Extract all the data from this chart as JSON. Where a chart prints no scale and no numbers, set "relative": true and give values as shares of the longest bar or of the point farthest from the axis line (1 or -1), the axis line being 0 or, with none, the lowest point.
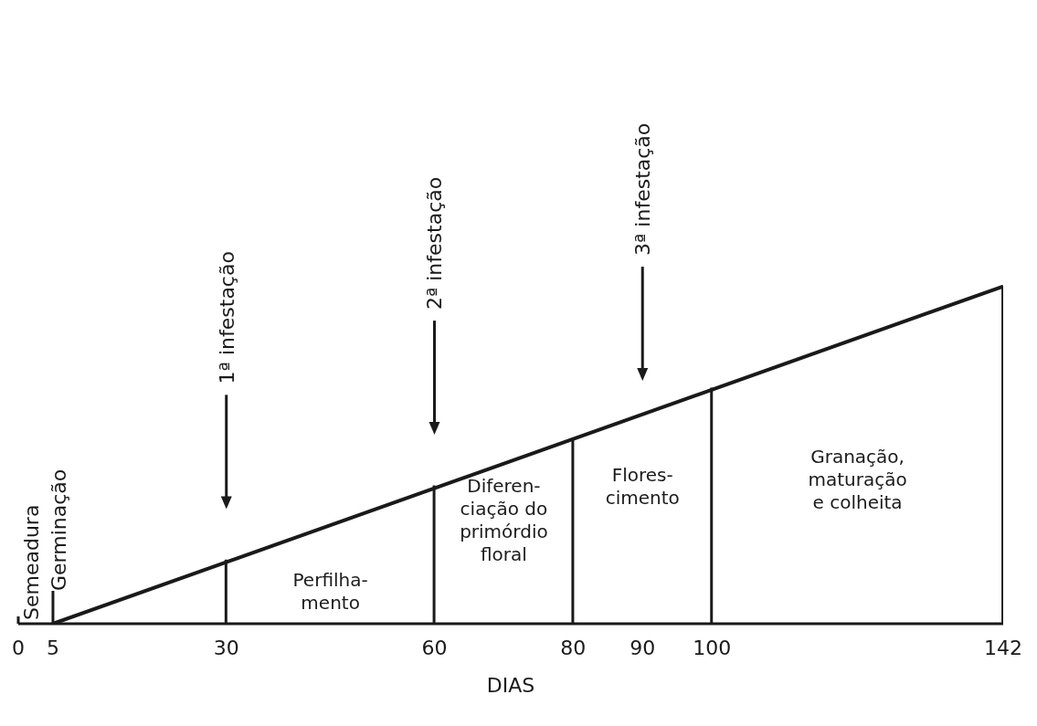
{
  "chart_data": {
    "type": "line",
    "xlabel": "DIAS",
    "relative": true,
    "xlim": [
      0,
      142
    ],
    "xticks": [
      0,
      5,
      30,
      60,
      80,
      90,
      100,
      142
    ],
    "marker": "none",
    "series": [
      {
        "color": "#1a1a1a",
        "x": [
          5,
          142
        ],
        "values": [
          0,
          1
        ]
      },
      {
        "type": "bar",
        "color": "#1a1a1a",
        "x": [
          30,
          60,
          80,
          100,
          142
        ],
        "values": [
          0.19,
          0.41,
          0.55,
          0.7,
          1
        ]
      }
    ],
    "ref_lines": [
      {
        "axis": "x",
        "value": 5,
        "label": "Germinação"
      },
      {
        "axis": "x",
        "value": 30,
        "label": "1ª infestação"
      },
      {
        "axis": "x",
        "value": 60,
        "label": "2ª infestação"
      },
      {
        "axis": "x",
        "value": 90,
        "label": "3ª infestação"
      }
    ],
    "annotations": [
      "Semeadura",
      "Perfilha-\nmento",
      "Diferen-\nciação do\nprimórdio\nfloral",
      "Flores-\ncimento",
      "Granação,\nmaturação\ne colheita"
    ]
  }
}
